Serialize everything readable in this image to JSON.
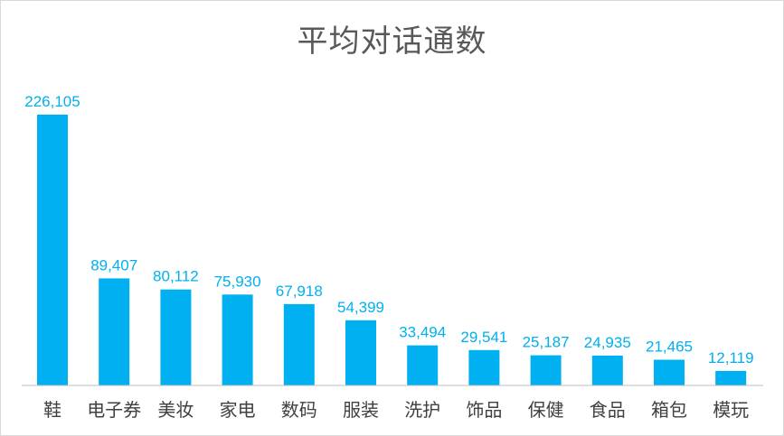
{
  "chart_data": {
    "type": "bar",
    "title": "平均对话通数",
    "categories": [
      "鞋",
      "电子券",
      "美妆",
      "家电",
      "数码",
      "服装",
      "洗护",
      "饰品",
      "保健",
      "食品",
      "箱包",
      "模玩"
    ],
    "values": [
      226105,
      89407,
      80112,
      75930,
      67918,
      54399,
      33494,
      29541,
      25187,
      24935,
      21465,
      12119
    ],
    "data_labels": [
      "226,105",
      "89,407",
      "80,112",
      "75,930",
      "67,918",
      "54,399",
      "33,494",
      "29,541",
      "25,187",
      "24,935",
      "21,465",
      "12,119"
    ],
    "xlabel": "",
    "ylabel": "",
    "grid": false,
    "legend": "none",
    "bar_color": "#00b0f0",
    "label_color": "#00b0f0"
  }
}
